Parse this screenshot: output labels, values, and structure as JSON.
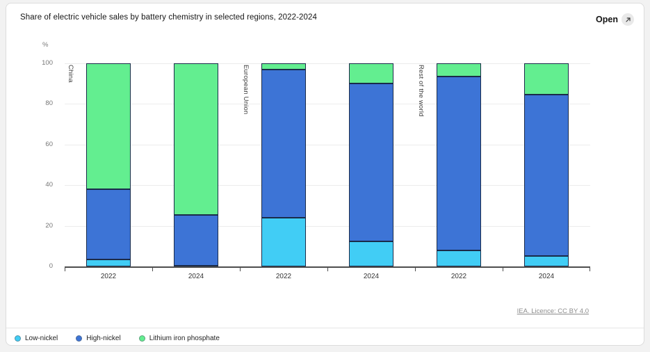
{
  "page": {
    "header": {
      "title": "Share of electric vehicle sales by battery chemistry in selected regions, 2022-2024",
      "open_label": "Open",
      "open_icon": "open-external-arrow-icon"
    },
    "source_link": "IEA. Licence: CC BY 4.0"
  },
  "chart_data": {
    "type": "bar",
    "stacked": true,
    "title": "Share of electric vehicle sales by battery chemistry in selected regions, 2022-2024",
    "unit": "%",
    "ylabel": "%",
    "ylim": [
      0,
      100
    ],
    "yticks": [
      0,
      20,
      40,
      60,
      80,
      100
    ],
    "grid": "horizontal",
    "legend_position": "bottom-left",
    "series": [
      {
        "name": "Low-nickel",
        "key": "low_nickel",
        "color": "#41CDF5"
      },
      {
        "name": "High-nickel",
        "key": "high_nickel",
        "color": "#3D74D6"
      },
      {
        "name": "Lithium iron phosphate",
        "key": "lfp",
        "color": "#63EE90"
      }
    ],
    "groups": [
      {
        "region": "China",
        "bars": [
          {
            "year": "2022",
            "values": {
              "low_nickel": 3.5,
              "high_nickel": 34.5,
              "lfp": 62
            }
          },
          {
            "year": "2024",
            "values": {
              "low_nickel": 0.5,
              "high_nickel": 25,
              "lfp": 74.5
            }
          }
        ]
      },
      {
        "region": "European Union",
        "bars": [
          {
            "year": "2022",
            "values": {
              "low_nickel": 24,
              "high_nickel": 73,
              "lfp": 3
            }
          },
          {
            "year": "2024",
            "values": {
              "low_nickel": 12.5,
              "high_nickel": 77.5,
              "lfp": 10
            }
          }
        ]
      },
      {
        "region": "Rest of the world",
        "bars": [
          {
            "year": "2022",
            "values": {
              "low_nickel": 8,
              "high_nickel": 85.5,
              "lfp": 6.5
            }
          },
          {
            "year": "2024",
            "values": {
              "low_nickel": 5,
              "high_nickel": 79.5,
              "lfp": 15.5
            }
          }
        ]
      }
    ]
  }
}
